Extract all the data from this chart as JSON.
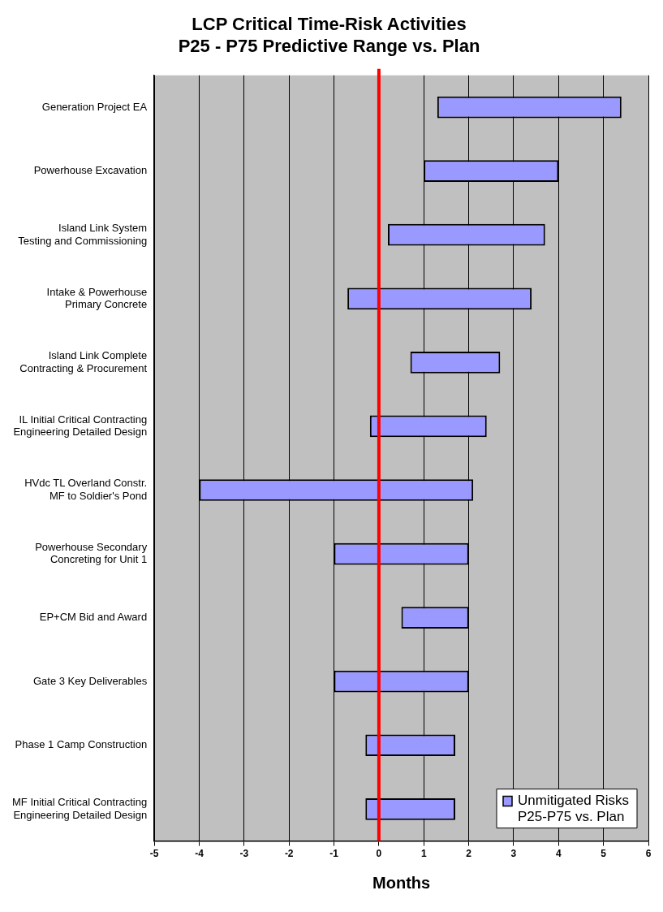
{
  "chart_data": {
    "type": "bar",
    "orientation": "horizontal",
    "title": "LCP Critical Time-Risk Activities\nP25 - P75 Predictive Range vs. Plan",
    "xlabel": "Months",
    "categories": [
      "Generation Project EA",
      "Powerhouse Excavation",
      "Island Link System\nTesting and Commissioning",
      "Intake & Powerhouse\nPrimary Concrete",
      "Island Link Complete\nContracting & Procurement",
      "IL Initial Critical Contracting\nEngineering Detailed Design",
      "HVdc TL Overland Constr.\nMF to Soldier's Pond",
      "Powerhouse Secondary\nConcreting for Unit 1",
      "EP+CM Bid and Award",
      "Gate 3 Key Deliverables",
      "Phase 1 Camp Construction",
      "MF Initial Critical Contracting\nEngineering Detailed Design"
    ],
    "series": [
      {
        "name": "Unmitigated Risks\nP25-P75 vs. Plan",
        "color": "#9999ff",
        "base": [
          1.3,
          1.0,
          0.2,
          -0.7,
          0.7,
          -0.2,
          -4.0,
          -1.0,
          0.5,
          -1.0,
          -0.3,
          -0.3
        ],
        "values": [
          4.1,
          3.0,
          3.5,
          4.1,
          2.0,
          2.6,
          6.1,
          3.0,
          1.5,
          3.0,
          2.0,
          2.0
        ]
      }
    ],
    "xlim": [
      -5,
      6
    ],
    "xticks": [
      -5,
      -4,
      -3,
      -2,
      -1,
      0,
      1,
      2,
      3,
      4,
      5,
      6
    ],
    "ref_lines": [
      {
        "axis": "x",
        "value": 0,
        "color": "#ff0000"
      }
    ],
    "grid": "x",
    "legend": "bottom right"
  }
}
